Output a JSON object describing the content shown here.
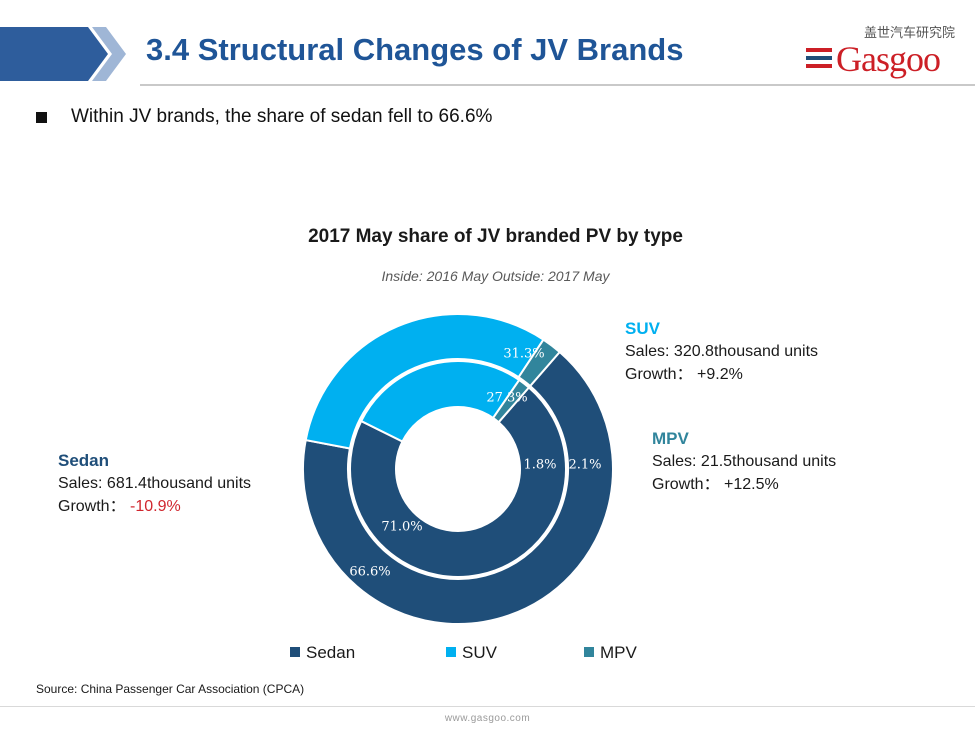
{
  "header": {
    "title": "3.4 Structural Changes of JV Brands",
    "logo_cn": "盖世汽车研究院",
    "logo_word": "Gasgoo"
  },
  "bullet": {
    "text": "Within JV brands, the share of sedan fell to 66.6%"
  },
  "chart_data": {
    "type": "donut",
    "title": "2017 May share of JV branded PV by type",
    "subtitle": "Inside: 2016 May  Outside: 2017 May",
    "categories": [
      "Sedan",
      "SUV",
      "MPV"
    ],
    "colors": [
      "#1f4e79",
      "#00b0f0",
      "#31859c"
    ],
    "rings": [
      {
        "name": "2016 May",
        "position": "inner",
        "values": [
          71.0,
          27.3,
          1.8
        ],
        "labels": [
          "71.0%",
          "27.3%",
          "1.8%"
        ]
      },
      {
        "name": "2017 May",
        "position": "outer",
        "values": [
          66.6,
          31.3,
          2.1
        ],
        "labels": [
          "66.6%",
          "31.3%",
          "2.1%"
        ]
      }
    ],
    "legend": {
      "placement": "bottom",
      "items": [
        "Sedan",
        "SUV",
        "MPV"
      ]
    }
  },
  "callouts": {
    "sedan": {
      "name": "Sedan",
      "sales": "Sales: 681.4thousand units",
      "growth_label": "Growth： ",
      "growth_value": "-10.9%"
    },
    "suv": {
      "name": "SUV",
      "sales": "Sales: 320.8thousand units",
      "growth": "Growth：  +9.2%"
    },
    "mpv": {
      "name": "MPV",
      "sales": "Sales: 21.5thousand units",
      "growth": "Growth：  +12.5%"
    }
  },
  "source": "Source: China Passenger Car Association (CPCA)",
  "footer": {
    "url": "www.gasgoo.com"
  }
}
